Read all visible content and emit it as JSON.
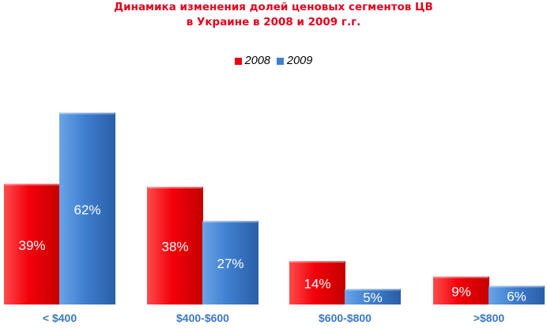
{
  "chart_data": {
    "type": "bar",
    "title_lines": [
      "Динамика изменения долей ценовых сегментов ЦВ",
      "в Украине в 2008 и 2009 г.г."
    ],
    "categories": [
      "< $400",
      "$400-$600",
      "$600-$800",
      ">$800"
    ],
    "series": [
      {
        "name": "2008",
        "values": [
          39,
          38,
          14,
          9
        ],
        "labels": [
          "39%",
          "38%",
          "14%",
          "9%"
        ],
        "color": "#f0000f"
      },
      {
        "name": "2009",
        "values": [
          62,
          27,
          5,
          6
        ],
        "labels": [
          "62%",
          "27%",
          "5%",
          "6%"
        ],
        "color": "#3f7fcf"
      }
    ],
    "legend_position": "top-center",
    "category_label_color": "#3a78c2",
    "value_label_color": "#ffffff",
    "grid": false
  }
}
